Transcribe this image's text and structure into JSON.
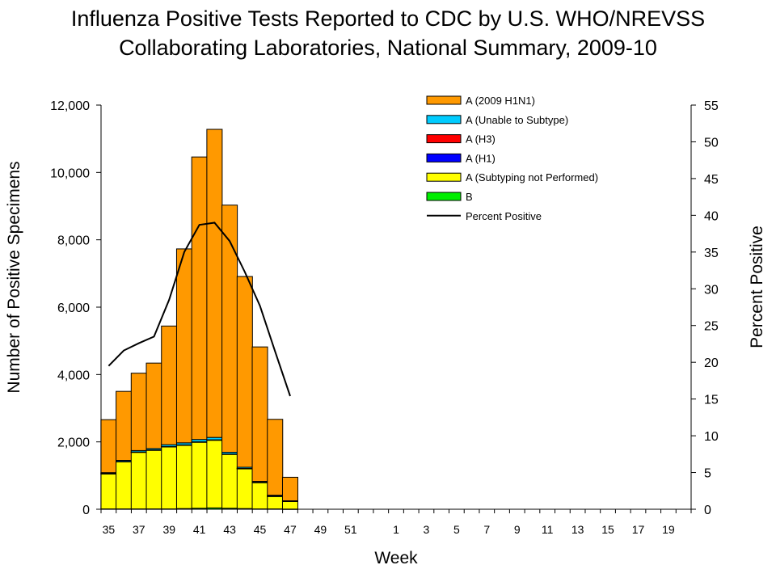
{
  "chart_data": {
    "type": "bar",
    "title_line1": "Influenza Positive Tests Reported to CDC by U.S. WHO/NREVSS",
    "title_line2": "Collaborating Laboratories, National Summary, 2009-10",
    "xlabel": "Week",
    "ylabel": "Number of Positive Specimens",
    "y2label": "Percent Positive",
    "ylim": [
      0,
      12000
    ],
    "y2lim": [
      0,
      55
    ],
    "y_ticks": [
      "0",
      "2,000",
      "4,000",
      "6,000",
      "8,000",
      "10,000",
      "12,000"
    ],
    "y_tick_values": [
      0,
      2000,
      4000,
      6000,
      8000,
      10000,
      12000
    ],
    "y2_ticks": [
      "0",
      "5",
      "10",
      "15",
      "20",
      "25",
      "30",
      "35",
      "40",
      "45",
      "50",
      "55"
    ],
    "y2_tick_values": [
      0,
      5,
      10,
      15,
      20,
      25,
      30,
      35,
      40,
      45,
      50,
      55
    ],
    "weeks": [
      "35",
      "36",
      "37",
      "38",
      "39",
      "40",
      "41",
      "42",
      "43",
      "44",
      "45",
      "46",
      "47",
      "48",
      "49",
      "50",
      "51",
      "52",
      "53",
      "1",
      "2",
      "3",
      "4",
      "5",
      "6",
      "7",
      "8",
      "9",
      "10",
      "11",
      "12",
      "13",
      "14",
      "15",
      "16",
      "17",
      "18",
      "19",
      "20"
    ],
    "week_labels": [
      "35",
      "37",
      "39",
      "41",
      "43",
      "45",
      "47",
      "49",
      "51",
      "1",
      "3",
      "5",
      "7",
      "9",
      "11",
      "13",
      "15",
      "17",
      "19"
    ],
    "series": [
      {
        "name": "B",
        "color": "#00ee00",
        "values": [
          10,
          10,
          10,
          10,
          10,
          20,
          30,
          40,
          30,
          20,
          10,
          10,
          5
        ]
      },
      {
        "name": "A (Subtyping not Performed)",
        "color": "#ffff00",
        "values": [
          1040,
          1400,
          1680,
          1740,
          1840,
          1880,
          1960,
          2010,
          1600,
          1180,
          780,
          370,
          230
        ]
      },
      {
        "name": "A (H1)",
        "color": "#0000ff",
        "values": [
          10,
          10,
          10,
          10,
          10,
          10,
          10,
          10,
          10,
          10,
          10,
          10,
          5
        ]
      },
      {
        "name": "A (H3)",
        "color": "#ff0000",
        "values": [
          2,
          2,
          2,
          2,
          2,
          2,
          2,
          2,
          2,
          2,
          2,
          2,
          2
        ]
      },
      {
        "name": "A (Unable to Subtype)",
        "color": "#00ccff",
        "values": [
          25,
          30,
          40,
          40,
          55,
          60,
          70,
          70,
          50,
          35,
          25,
          25,
          10
        ]
      },
      {
        "name": "A (2009 H1N1)",
        "color": "#ff9900",
        "values": [
          1573,
          2048,
          2298,
          2538,
          3523,
          5758,
          8388,
          9148,
          7338,
          5663,
          3993,
          2253,
          698
        ]
      }
    ],
    "line": {
      "name": "Percent Positive",
      "color": "#000000",
      "axis": "right",
      "values": [
        19.5,
        21.6,
        22.6,
        23.5,
        28.5,
        35.0,
        38.7,
        39.0,
        36.5,
        32.3,
        27.7,
        21.5,
        15.4
      ]
    },
    "legend": [
      {
        "label": "A (2009 H1N1)",
        "color": "#ff9900",
        "kind": "box"
      },
      {
        "label": "A (Unable to Subtype)",
        "color": "#00ccff",
        "kind": "box"
      },
      {
        "label": "A (H3)",
        "color": "#ff0000",
        "kind": "box"
      },
      {
        "label": "A (H1)",
        "color": "#0000ff",
        "kind": "box"
      },
      {
        "label": "A (Subtyping not Performed)",
        "color": "#ffff00",
        "kind": "box"
      },
      {
        "label": "B",
        "color": "#00ee00",
        "kind": "box"
      },
      {
        "label": "Percent Positive",
        "color": "#000000",
        "kind": "line"
      }
    ],
    "legend_position": "top-right"
  }
}
